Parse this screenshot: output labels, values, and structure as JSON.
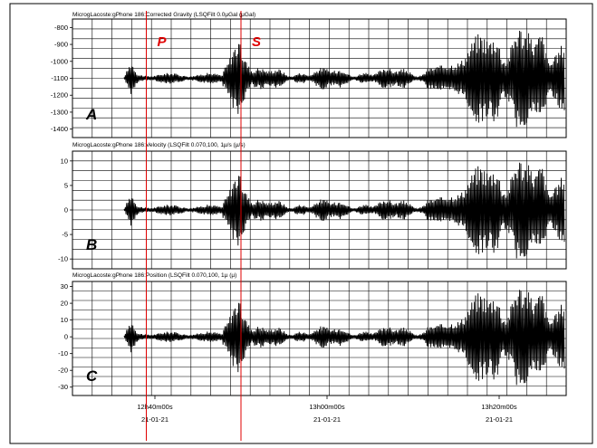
{
  "chart_data": [
    {
      "type": "line",
      "panel_label": "A",
      "title": "MicrogLacoste:gPhone 186:Corrected Gravity (LSQFilt 0.0µGal (µGal)",
      "yticks": [
        -800,
        -900,
        -1000,
        -1100,
        -1200,
        -1300,
        -1400
      ],
      "ylim": [
        -1450,
        -750
      ],
      "baseline": -1100,
      "peak_amplitude": 320
    },
    {
      "type": "line",
      "panel_label": "B",
      "title": "MicrogLacoste:gPhone 186:Velocity (LSQFilt 0.070,100, 1µ/s (µ/s)",
      "yticks": [
        10,
        5,
        0,
        -5,
        -10
      ],
      "ylim": [
        -12,
        12
      ],
      "baseline": 0,
      "peak_amplitude": 11
    },
    {
      "type": "line",
      "panel_label": "C",
      "title": "MicrogLacoste:gPhone 186:Position (LSQFilt 0.070,100, 1µ (µ)",
      "yticks": [
        30,
        20,
        10,
        0,
        -10,
        -20,
        -30
      ],
      "ylim": [
        -35,
        33
      ],
      "baseline": 0,
      "peak_amplitude": 32
    }
  ],
  "time_axis": {
    "ticks": [
      {
        "time": "12h40m00s",
        "date": "21-01-21"
      },
      {
        "time": "13h00m00s",
        "date": "21-01-21"
      },
      {
        "time": "13h20m00s",
        "date": "21-01-21"
      }
    ]
  },
  "phase_markers": [
    {
      "label": "P",
      "time": "12h39m"
    },
    {
      "label": "S",
      "time": "12h50m"
    }
  ],
  "colors": {
    "trace": "#000000",
    "grid": "#000000",
    "marker": "#e00000",
    "phase_label": "#e00000"
  }
}
